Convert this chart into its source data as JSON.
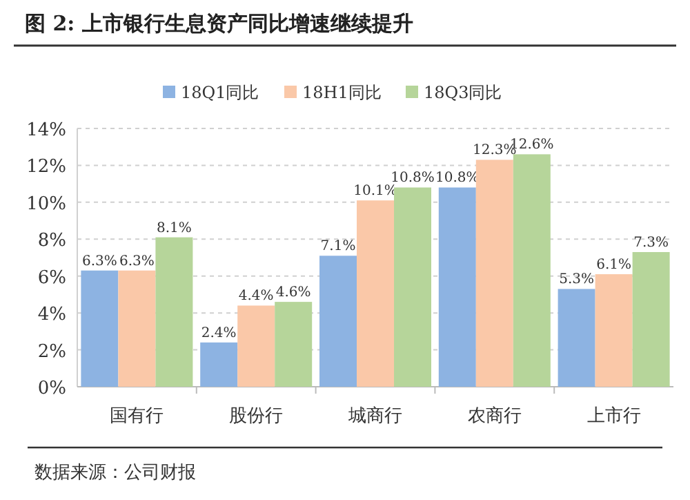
{
  "chart_data": {
    "type": "bar",
    "title": "图 2:  上市银行生息资产同比增速继续提升",
    "categories": [
      "国有行",
      "股份行",
      "城商行",
      "农商行",
      "上市行"
    ],
    "series": [
      {
        "name": "18Q1同比",
        "color": "#8db3e2",
        "values": [
          6.3,
          2.4,
          7.1,
          10.8,
          5.3
        ],
        "value_labels": [
          "6.3%",
          "2.4%",
          "7.1%",
          "10.8%",
          "5.3%"
        ]
      },
      {
        "name": "18H1同比",
        "color": "#fac8a8",
        "values": [
          6.3,
          4.4,
          10.1,
          12.3,
          6.1
        ],
        "value_labels": [
          "6.3%",
          "4.4%",
          "10.1%",
          "12.3%",
          "6.1%"
        ]
      },
      {
        "name": "18Q3同比",
        "color": "#b6d59a",
        "values": [
          8.1,
          4.6,
          10.8,
          12.6,
          7.3
        ],
        "value_labels": [
          "8.1%",
          "4.6%",
          "10.8%",
          "12.6%",
          "7.3%"
        ]
      }
    ],
    "ylim": [
      0,
      14
    ],
    "yticks": [
      {
        "value": 0,
        "label": "0%"
      },
      {
        "value": 2,
        "label": "2%"
      },
      {
        "value": 4,
        "label": "4%"
      },
      {
        "value": 6,
        "label": "6%"
      },
      {
        "value": 8,
        "label": "8%"
      },
      {
        "value": 10,
        "label": "10%"
      },
      {
        "value": 12,
        "label": "12%"
      },
      {
        "value": 14,
        "label": "14%"
      }
    ],
    "grid": "y",
    "legend": "top",
    "annotations": [
      "数据来源：公司财报"
    ]
  }
}
